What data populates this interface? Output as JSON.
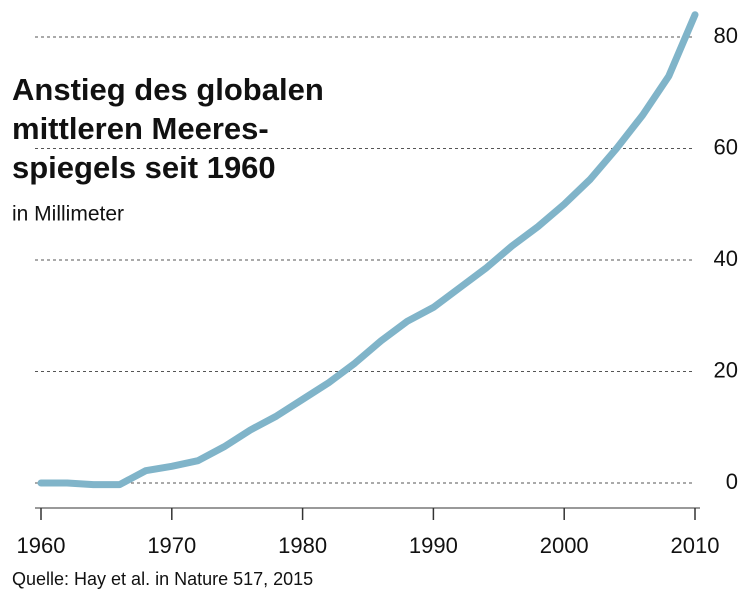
{
  "chart_data": {
    "type": "line",
    "title": [
      "Anstieg des globalen",
      "mittleren Meeres-",
      "spiegels seit 1960"
    ],
    "subtitle": "in Millimeter",
    "source": "Quelle: Hay et al. in Nature 517, 2015",
    "x": [
      1960,
      1962,
      1964,
      1966,
      1968,
      1970,
      1972,
      1974,
      1976,
      1978,
      1980,
      1982,
      1984,
      1986,
      1988,
      1990,
      1992,
      1994,
      1996,
      1998,
      2000,
      2002,
      2004,
      2006,
      2008,
      2010
    ],
    "series": [
      {
        "name": "Meeresspiegel",
        "color": "#80b4c9",
        "values": [
          0,
          0,
          -0.3,
          -0.3,
          2.2,
          3,
          4,
          6.5,
          9.5,
          12,
          15,
          18,
          21.5,
          25.5,
          29,
          31.5,
          35,
          38.5,
          42.5,
          46,
          50,
          54.5,
          60,
          66,
          73,
          84
        ]
      }
    ],
    "xlim": [
      1960,
      2010
    ],
    "xticks": [
      1960,
      1970,
      1980,
      1990,
      2000,
      2010
    ],
    "ylim": [
      0,
      80
    ],
    "yticks": [
      0,
      20,
      40,
      60,
      80
    ],
    "grid": true
  }
}
